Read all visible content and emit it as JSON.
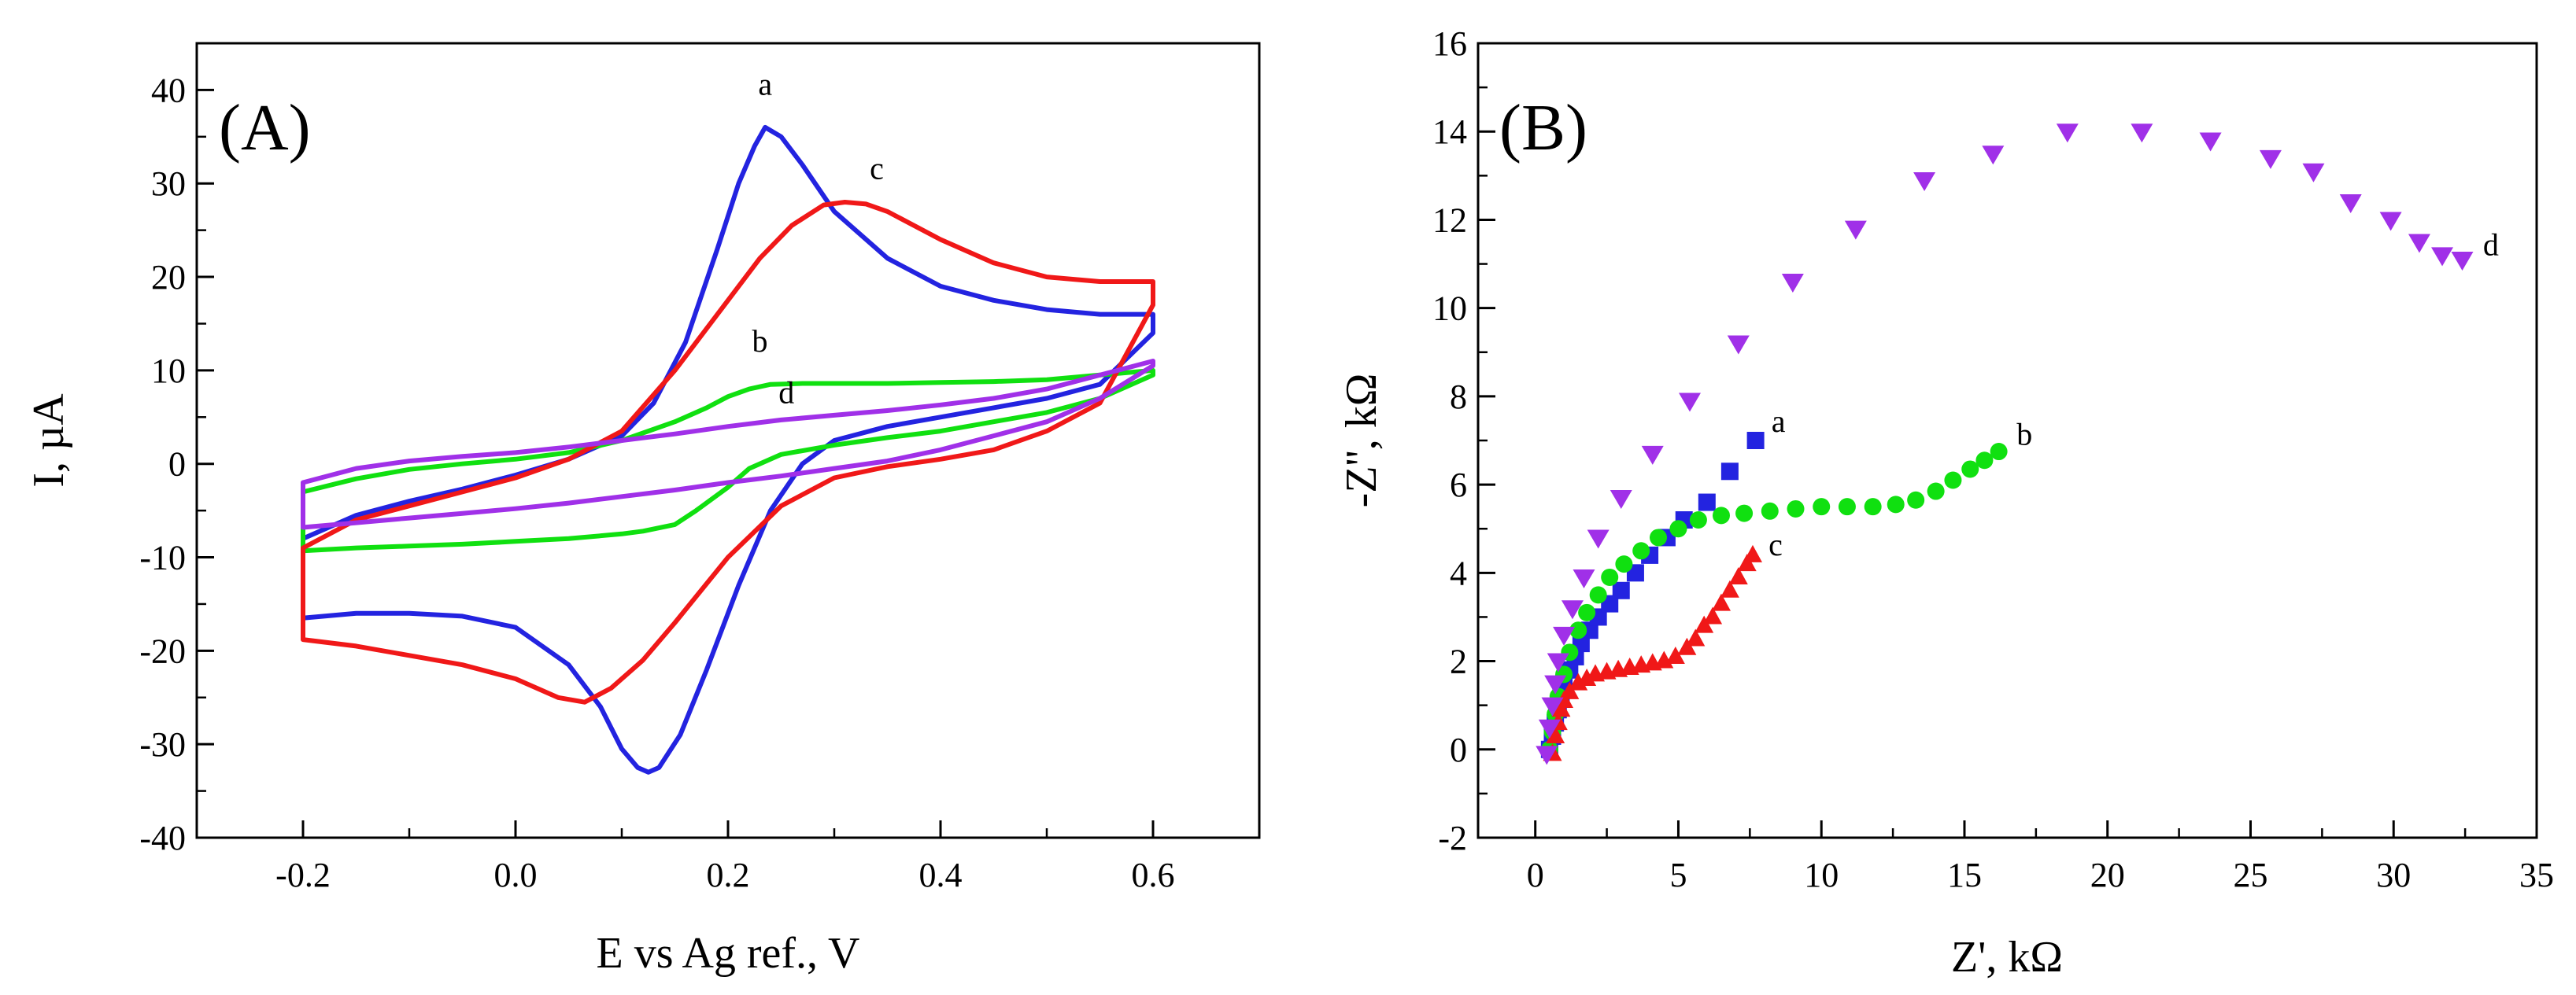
{
  "chart_data": [
    {
      "type": "line",
      "panel_label": "(A)",
      "xlabel": "E vs Ag ref., V",
      "ylabel": "I, µA",
      "xlim": [
        -0.3,
        0.7
      ],
      "ylim": [
        -40,
        45
      ],
      "x_ticks": [
        -0.2,
        0.0,
        0.2,
        0.4,
        0.6
      ],
      "x_tick_labels": [
        "-0.2",
        "0.0",
        "0.2",
        "0.4",
        "0.6"
      ],
      "y_ticks": [
        -40,
        -30,
        -20,
        -10,
        0,
        10,
        20,
        30,
        40
      ],
      "y_tick_labels": [
        "-40",
        "-30",
        "-20",
        "-10",
        "0",
        "10",
        "20",
        "30",
        "40"
      ],
      "grid": false,
      "series": [
        {
          "name": "a",
          "color": "#2323e0",
          "label_at": [
            0.235,
            39.5
          ],
          "x": [
            -0.2,
            -0.15,
            -0.1,
            -0.05,
            0.0,
            0.05,
            0.1,
            0.13,
            0.16,
            0.19,
            0.21,
            0.225,
            0.235,
            0.25,
            0.27,
            0.3,
            0.35,
            0.4,
            0.45,
            0.5,
            0.55,
            0.6,
            0.6,
            0.55,
            0.5,
            0.45,
            0.4,
            0.35,
            0.3,
            0.27,
            0.24,
            0.21,
            0.18,
            0.155,
            0.135,
            0.125,
            0.115,
            0.1,
            0.08,
            0.05,
            0.0,
            -0.05,
            -0.1,
            -0.15,
            -0.2,
            -0.2
          ],
          "y": [
            -8,
            -5.5,
            -4,
            -2.7,
            -1.2,
            0.5,
            3,
            6.5,
            13,
            23,
            30,
            34,
            36,
            35,
            32,
            27,
            22,
            19,
            17.5,
            16.5,
            16,
            16,
            14,
            8.5,
            7,
            6,
            5,
            4,
            2.5,
            0,
            -5,
            -13,
            -22,
            -29,
            -32.5,
            -33,
            -32.5,
            -30.5,
            -26,
            -21.5,
            -17.5,
            -16.3,
            -16,
            -16,
            -16.5,
            -8
          ]
        },
        {
          "name": "b",
          "color": "#10e010",
          "label_at": [
            0.23,
            12
          ],
          "x": [
            -0.2,
            -0.15,
            -0.1,
            -0.05,
            0.0,
            0.05,
            0.1,
            0.15,
            0.18,
            0.2,
            0.22,
            0.24,
            0.27,
            0.3,
            0.35,
            0.4,
            0.45,
            0.5,
            0.55,
            0.6,
            0.6,
            0.55,
            0.5,
            0.45,
            0.4,
            0.35,
            0.3,
            0.25,
            0.22,
            0.2,
            0.17,
            0.15,
            0.12,
            0.1,
            0.05,
            0.0,
            -0.05,
            -0.1,
            -0.15,
            -0.2,
            -0.2
          ],
          "y": [
            -3,
            -1.6,
            -0.6,
            0,
            0.5,
            1.2,
            2.5,
            4.5,
            6,
            7.2,
            8,
            8.5,
            8.6,
            8.6,
            8.6,
            8.7,
            8.8,
            9,
            9.5,
            10,
            9.5,
            7,
            5.5,
            4.5,
            3.5,
            2.8,
            2,
            1,
            -0.5,
            -2.5,
            -5,
            -6.5,
            -7.2,
            -7.5,
            -8,
            -8.3,
            -8.6,
            -8.8,
            -9,
            -9.3,
            -3
          ]
        },
        {
          "name": "c",
          "color": "#f01818",
          "label_at": [
            0.34,
            30.5
          ],
          "x": [
            -0.2,
            -0.15,
            -0.1,
            -0.05,
            0.0,
            0.05,
            0.1,
            0.15,
            0.2,
            0.23,
            0.26,
            0.29,
            0.31,
            0.33,
            0.35,
            0.4,
            0.45,
            0.5,
            0.55,
            0.6,
            0.6,
            0.55,
            0.5,
            0.45,
            0.4,
            0.35,
            0.3,
            0.25,
            0.2,
            0.15,
            0.12,
            0.09,
            0.065,
            0.04,
            0.0,
            -0.05,
            -0.1,
            -0.15,
            -0.2,
            -0.2
          ],
          "y": [
            -9,
            -6,
            -4.5,
            -3,
            -1.5,
            0.5,
            3.5,
            10,
            17.5,
            22,
            25.5,
            27.7,
            28,
            27.8,
            27,
            24,
            21.5,
            20,
            19.5,
            19.5,
            17,
            6.5,
            3.5,
            1.5,
            0.5,
            -0.3,
            -1.5,
            -4.5,
            -10,
            -17,
            -21,
            -24,
            -25.5,
            -25,
            -23,
            -21.5,
            -20.5,
            -19.5,
            -18.8,
            -9
          ]
        },
        {
          "name": "d",
          "color": "#a030e8",
          "label_at": [
            0.255,
            6.5
          ],
          "x": [
            -0.2,
            -0.15,
            -0.1,
            -0.05,
            0.0,
            0.05,
            0.1,
            0.15,
            0.2,
            0.25,
            0.3,
            0.35,
            0.4,
            0.45,
            0.5,
            0.55,
            0.6,
            0.6,
            0.55,
            0.5,
            0.45,
            0.4,
            0.35,
            0.3,
            0.25,
            0.2,
            0.15,
            0.1,
            0.05,
            0.0,
            -0.05,
            -0.1,
            -0.15,
            -0.2,
            -0.2
          ],
          "y": [
            -2,
            -0.5,
            0.3,
            0.8,
            1.2,
            1.8,
            2.5,
            3.2,
            4,
            4.7,
            5.2,
            5.7,
            6.3,
            7,
            8,
            9.5,
            11,
            10.5,
            7,
            4.5,
            3,
            1.5,
            0.3,
            -0.5,
            -1.3,
            -2,
            -2.8,
            -3.5,
            -4.2,
            -4.8,
            -5.3,
            -5.8,
            -6.3,
            -6.8,
            -2
          ]
        }
      ]
    },
    {
      "type": "scatter",
      "panel_label": "(B)",
      "xlabel": "Z', kΩ",
      "ylabel": "-Z'', kΩ",
      "xlim": [
        -2,
        35
      ],
      "ylim": [
        -2,
        16
      ],
      "x_ticks": [
        0,
        5,
        10,
        15,
        20,
        25,
        30,
        35
      ],
      "x_tick_labels": [
        "0",
        "5",
        "10",
        "15",
        "20",
        "25",
        "30",
        "35"
      ],
      "y_ticks": [
        -2,
        0,
        2,
        4,
        6,
        8,
        10,
        12,
        14,
        16
      ],
      "y_tick_labels": [
        "-2",
        "0",
        "2",
        "4",
        "6",
        "8",
        "10",
        "12",
        "14",
        "16"
      ],
      "grid": false,
      "series": [
        {
          "name": "a",
          "color": "#2323e0",
          "marker": "square",
          "label_at": [
            8.5,
            7.2
          ],
          "x": [
            0.5,
            0.6,
            0.7,
            0.8,
            0.9,
            1.0,
            1.2,
            1.4,
            1.6,
            1.9,
            2.2,
            2.6,
            3.0,
            3.5,
            4.0,
            4.6,
            5.2,
            6.0,
            6.8,
            7.7
          ],
          "y": [
            0.0,
            0.3,
            0.6,
            0.9,
            1.2,
            1.5,
            1.8,
            2.1,
            2.4,
            2.7,
            3.0,
            3.3,
            3.6,
            4.0,
            4.4,
            4.8,
            5.2,
            5.6,
            6.3,
            7.0
          ]
        },
        {
          "name": "b",
          "color": "#10e010",
          "marker": "circle",
          "label_at": [
            17.1,
            6.9
          ],
          "x": [
            0.5,
            0.6,
            0.7,
            0.8,
            1.0,
            1.2,
            1.5,
            1.8,
            2.2,
            2.6,
            3.1,
            3.7,
            4.3,
            5.0,
            5.7,
            6.5,
            7.3,
            8.2,
            9.1,
            10.0,
            10.9,
            11.8,
            12.6,
            13.3,
            14.0,
            14.6,
            15.2,
            15.7,
            16.2
          ],
          "y": [
            0.0,
            0.4,
            0.8,
            1.2,
            1.7,
            2.2,
            2.7,
            3.1,
            3.5,
            3.9,
            4.2,
            4.5,
            4.8,
            5.0,
            5.2,
            5.3,
            5.35,
            5.4,
            5.45,
            5.5,
            5.5,
            5.5,
            5.55,
            5.65,
            5.85,
            6.1,
            6.35,
            6.55,
            6.75
          ]
        },
        {
          "name": "c",
          "color": "#f01818",
          "marker": "triangle-up",
          "label_at": [
            8.4,
            4.4
          ],
          "x": [
            0.6,
            0.7,
            0.8,
            0.9,
            1.0,
            1.2,
            1.5,
            1.8,
            2.1,
            2.5,
            2.9,
            3.3,
            3.7,
            4.1,
            4.5,
            4.9,
            5.3,
            5.6,
            5.9,
            6.2,
            6.5,
            6.8,
            7.1,
            7.4,
            7.6
          ],
          "y": [
            -0.1,
            0.3,
            0.6,
            0.9,
            1.1,
            1.3,
            1.5,
            1.6,
            1.7,
            1.75,
            1.8,
            1.85,
            1.9,
            1.95,
            2.0,
            2.1,
            2.3,
            2.5,
            2.8,
            3.0,
            3.3,
            3.6,
            3.9,
            4.2,
            4.4
          ]
        },
        {
          "name": "d",
          "color": "#a030e8",
          "marker": "triangle-down",
          "label_at": [
            33.4,
            11.2
          ],
          "x": [
            0.4,
            0.5,
            0.6,
            0.7,
            0.8,
            1.0,
            1.3,
            1.7,
            2.2,
            3.0,
            4.1,
            5.4,
            7.1,
            9.0,
            11.2,
            13.6,
            16.0,
            18.6,
            21.2,
            23.6,
            25.7,
            27.2,
            28.5,
            29.9,
            30.9,
            31.7,
            32.4
          ],
          "y": [
            -0.1,
            0.5,
            1.0,
            1.5,
            2.0,
            2.6,
            3.2,
            3.9,
            4.8,
            5.7,
            6.7,
            7.9,
            9.2,
            10.6,
            11.8,
            12.9,
            13.5,
            14.0,
            14.0,
            13.8,
            13.4,
            13.1,
            12.4,
            12.0,
            11.5,
            11.2,
            11.1
          ]
        }
      ]
    }
  ]
}
